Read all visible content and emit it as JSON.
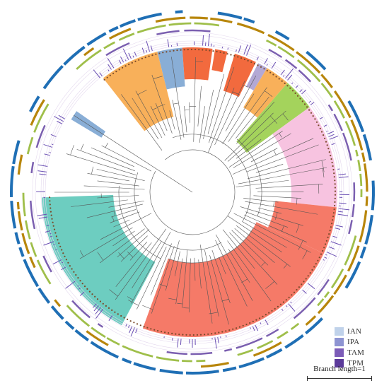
{
  "clade_colors": [
    "#f8b05a",
    "#89aed6",
    "#f26a3e",
    "#f26a3e",
    "#f26a3e",
    "#b3a8d4",
    "#f8b05a",
    "#a4d35c",
    "#f7c3e0",
    "#f57a68",
    "#f57a68",
    "#6dcdc0",
    "#89aed6"
  ],
  "ring_colors": {
    "outer_blue": "#1f6fb5",
    "gold": "#b8860b",
    "olive": "#9fbf4a",
    "purple_ring": "#7b5fb0",
    "bars": "#6a4fb3"
  },
  "legend": {
    "items": [
      {
        "label": "IAN",
        "color": "#c0d2ea"
      },
      {
        "label": "IPA",
        "color": "#8e94d2"
      },
      {
        "label": "TAM",
        "color": "#7c5cb8"
      },
      {
        "label": "TPM",
        "color": "#5b3a9a"
      }
    ]
  },
  "scale": {
    "label": "Branch length=1",
    "value": 1
  }
}
